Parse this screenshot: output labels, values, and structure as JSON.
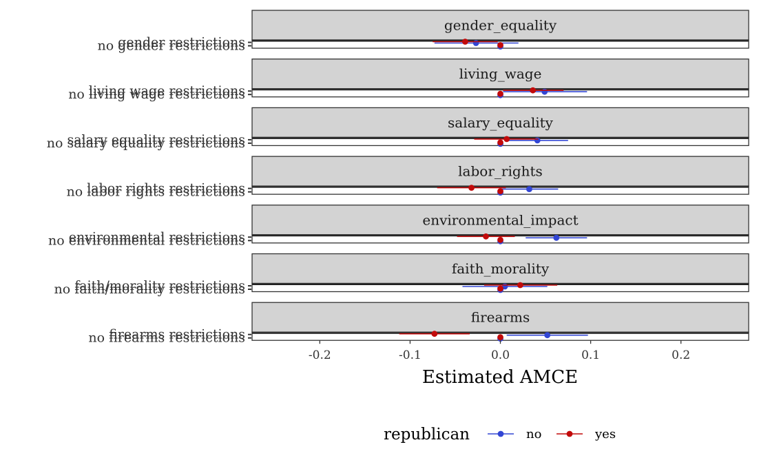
{
  "chart_data": {
    "type": "scatter",
    "xlabel": "Estimated AMCE",
    "ylabel": "",
    "xlim": [
      -0.275,
      0.275
    ],
    "xticks": [
      -0.2,
      -0.1,
      0.0,
      0.1,
      0.2
    ],
    "xtick_labels": [
      "-0.2",
      "-0.1",
      "0.0",
      "0.1",
      "0.2"
    ],
    "legend": {
      "title": "republican",
      "position": "bottom",
      "entries": [
        {
          "label": "no",
          "color": "#3246d4"
        },
        {
          "label": "yes",
          "color": "#c20a0a"
        }
      ]
    },
    "facets": [
      {
        "strip": "gender_equality",
        "levels": [
          "gender restrictions",
          "no gender restrictions"
        ],
        "points": [
          {
            "level": "gender restrictions",
            "group": "no",
            "estimate": -0.027,
            "lower": -0.073,
            "upper": 0.02
          },
          {
            "level": "gender restrictions",
            "group": "yes",
            "estimate": -0.039,
            "lower": -0.075,
            "upper": -0.003
          },
          {
            "level": "no gender restrictions",
            "group": "no",
            "estimate": 0.0,
            "lower": 0.0,
            "upper": 0.0
          },
          {
            "level": "no gender restrictions",
            "group": "yes",
            "estimate": 0.0,
            "lower": 0.0,
            "upper": 0.0
          }
        ]
      },
      {
        "strip": "living_wage",
        "levels": [
          "living wage restrictions",
          "no living wage restrictions"
        ],
        "points": [
          {
            "level": "living wage restrictions",
            "group": "no",
            "estimate": 0.049,
            "lower": 0.003,
            "upper": 0.096
          },
          {
            "level": "living wage restrictions",
            "group": "yes",
            "estimate": 0.036,
            "lower": 0.003,
            "upper": 0.07
          },
          {
            "level": "no living wage restrictions",
            "group": "no",
            "estimate": 0.0,
            "lower": 0.0,
            "upper": 0.0
          },
          {
            "level": "no living wage restrictions",
            "group": "yes",
            "estimate": 0.0,
            "lower": 0.0,
            "upper": 0.0
          }
        ]
      },
      {
        "strip": "salary_equality",
        "levels": [
          "salary equality restrictions",
          "no salary equality restrictions"
        ],
        "points": [
          {
            "level": "salary equality restrictions",
            "group": "no",
            "estimate": 0.041,
            "lower": 0.007,
            "upper": 0.075
          },
          {
            "level": "salary equality restrictions",
            "group": "yes",
            "estimate": 0.007,
            "lower": -0.029,
            "upper": 0.042
          },
          {
            "level": "no salary equality restrictions",
            "group": "no",
            "estimate": 0.0,
            "lower": 0.0,
            "upper": 0.0
          },
          {
            "level": "no salary equality restrictions",
            "group": "yes",
            "estimate": 0.0,
            "lower": 0.0,
            "upper": 0.0
          }
        ]
      },
      {
        "strip": "labor_rights",
        "levels": [
          "labor rights restrictions",
          "no labor rights restrictions"
        ],
        "points": [
          {
            "level": "labor rights restrictions",
            "group": "no",
            "estimate": 0.032,
            "lower": 0.0,
            "upper": 0.064
          },
          {
            "level": "labor rights restrictions",
            "group": "yes",
            "estimate": -0.032,
            "lower": -0.07,
            "upper": 0.006
          },
          {
            "level": "no labor rights restrictions",
            "group": "no",
            "estimate": 0.0,
            "lower": 0.0,
            "upper": 0.0
          },
          {
            "level": "no labor rights restrictions",
            "group": "yes",
            "estimate": 0.0,
            "lower": 0.0,
            "upper": 0.0
          }
        ]
      },
      {
        "strip": "environmental_impact",
        "levels": [
          "environmental restrictions",
          "no environmental restrictions"
        ],
        "points": [
          {
            "level": "environmental restrictions",
            "group": "no",
            "estimate": 0.062,
            "lower": 0.028,
            "upper": 0.096
          },
          {
            "level": "environmental restrictions",
            "group": "yes",
            "estimate": -0.016,
            "lower": -0.048,
            "upper": 0.016
          },
          {
            "level": "no environmental restrictions",
            "group": "no",
            "estimate": 0.0,
            "lower": 0.0,
            "upper": 0.0
          },
          {
            "level": "no environmental restrictions",
            "group": "yes",
            "estimate": 0.0,
            "lower": 0.0,
            "upper": 0.0
          }
        ]
      },
      {
        "strip": "faith_morality",
        "levels": [
          "faith/morality restrictions",
          "no faith/morality restrictions"
        ],
        "points": [
          {
            "level": "faith/morality restrictions",
            "group": "no",
            "estimate": 0.005,
            "lower": -0.042,
            "upper": 0.052
          },
          {
            "level": "faith/morality restrictions",
            "group": "yes",
            "estimate": 0.022,
            "lower": -0.018,
            "upper": 0.063
          },
          {
            "level": "no faith/morality restrictions",
            "group": "no",
            "estimate": 0.0,
            "lower": 0.0,
            "upper": 0.0
          },
          {
            "level": "no faith/morality restrictions",
            "group": "yes",
            "estimate": 0.0,
            "lower": 0.0,
            "upper": 0.0
          }
        ]
      },
      {
        "strip": "firearms",
        "levels": [
          "firearms restrictions",
          "no firearms restrictions"
        ],
        "points": [
          {
            "level": "firearms restrictions",
            "group": "no",
            "estimate": 0.052,
            "lower": 0.007,
            "upper": 0.097
          },
          {
            "level": "firearms restrictions",
            "group": "yes",
            "estimate": -0.073,
            "lower": -0.112,
            "upper": -0.034
          },
          {
            "level": "no firearms restrictions",
            "group": "no",
            "estimate": 0.0,
            "lower": 0.0,
            "upper": 0.0
          },
          {
            "level": "no firearms restrictions",
            "group": "yes",
            "estimate": 0.0,
            "lower": 0.0,
            "upper": 0.0
          }
        ]
      }
    ]
  }
}
